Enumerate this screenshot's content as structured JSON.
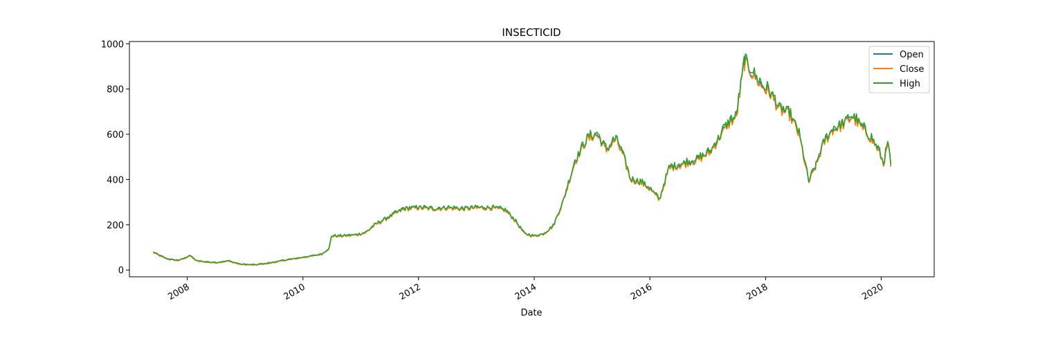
{
  "chart_data": {
    "type": "line",
    "title": "INSECTICID",
    "xlabel": "Date",
    "ylabel": "",
    "xlim": [
      "2007-01-01",
      "2020-12-01"
    ],
    "ylim": [
      -30,
      1010
    ],
    "x_ticks": [
      "2008-01-01",
      "2010-01-01",
      "2012-01-01",
      "2014-01-01",
      "2016-01-01",
      "2018-01-01",
      "2020-01-01"
    ],
    "x_tick_labels": [
      "2008",
      "2010",
      "2012",
      "2014",
      "2016",
      "2018",
      "2020"
    ],
    "y_ticks": [
      0,
      200,
      400,
      600,
      800,
      1000
    ],
    "legend_position": "top-right",
    "grid": false,
    "series": [
      {
        "name": "Open",
        "color": "#1f77b4",
        "offset": 0
      },
      {
        "name": "Close",
        "color": "#ff7f0e",
        "offset": -4
      },
      {
        "name": "High",
        "color": "#2ca02c",
        "offset": 8
      }
    ],
    "x": [
      "2007-06-01",
      "2007-07-15",
      "2007-09-01",
      "2007-11-01",
      "2007-12-20",
      "2008-01-15",
      "2008-03-01",
      "2008-05-01",
      "2008-07-01",
      "2008-09-15",
      "2008-12-01",
      "2009-03-01",
      "2009-06-01",
      "2009-09-01",
      "2009-12-01",
      "2010-03-01",
      "2010-05-01",
      "2010-06-15",
      "2010-07-01",
      "2010-09-01",
      "2010-12-01",
      "2011-02-01",
      "2011-04-01",
      "2011-07-01",
      "2011-10-01",
      "2012-01-01",
      "2012-04-01",
      "2012-07-01",
      "2012-10-01",
      "2013-01-01",
      "2013-04-01",
      "2013-07-01",
      "2013-09-01",
      "2013-11-01",
      "2014-01-01",
      "2014-03-01",
      "2014-05-01",
      "2014-07-01",
      "2014-09-15",
      "2014-12-01",
      "2015-02-01",
      "2015-04-01",
      "2015-06-01",
      "2015-07-15",
      "2015-09-01",
      "2015-11-01",
      "2016-01-01",
      "2016-03-01",
      "2016-05-01",
      "2016-08-01",
      "2016-11-01",
      "2017-01-15",
      "2017-03-01",
      "2017-05-01",
      "2017-07-01",
      "2017-08-20",
      "2017-10-01",
      "2017-12-01",
      "2018-02-01",
      "2018-04-01",
      "2018-06-01",
      "2018-08-01",
      "2018-10-01",
      "2018-11-15",
      "2019-01-01",
      "2019-03-01",
      "2019-05-01",
      "2019-07-01",
      "2019-09-01",
      "2019-11-01",
      "2019-12-15",
      "2020-01-15",
      "2020-02-15",
      "2020-03-01"
    ],
    "values": [
      78,
      62,
      48,
      42,
      52,
      65,
      40,
      35,
      32,
      40,
      25,
      22,
      30,
      42,
      52,
      62,
      70,
      95,
      150,
      150,
      155,
      165,
      200,
      235,
      270,
      275,
      270,
      275,
      270,
      275,
      275,
      265,
      220,
      160,
      150,
      160,
      195,
      300,
      480,
      580,
      600,
      530,
      580,
      510,
      400,
      390,
      360,
      310,
      450,
      470,
      490,
      520,
      570,
      640,
      680,
      920,
      880,
      820,
      780,
      710,
      690,
      600,
      390,
      460,
      560,
      620,
      640,
      680,
      630,
      580,
      530,
      470,
      560,
      460
    ]
  }
}
